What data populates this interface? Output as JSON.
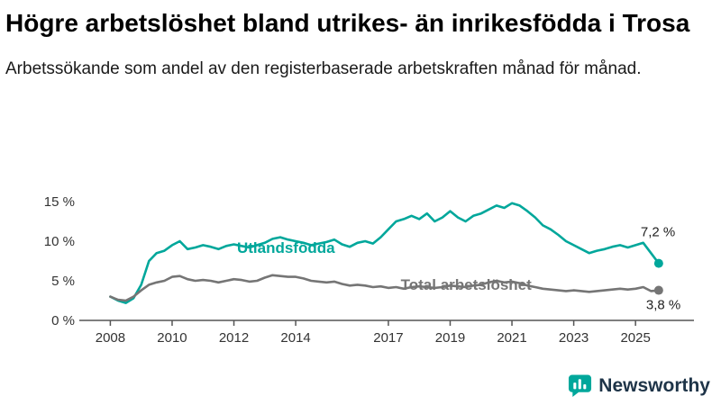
{
  "header": {
    "title": "Högre arbetslöshet bland utrikes- än inrikesfödda i Trosa",
    "subtitle": "Arbetssökande som andel av den registerbaserade arbetskraften månad för månad."
  },
  "branding": {
    "name": "Newsworthy",
    "icon_color": "#00a79b",
    "text_color": "#1e3448"
  },
  "chart_data": {
    "type": "line",
    "title": "",
    "xlabel": "",
    "ylabel": "",
    "grid": false,
    "legend": "inline-labels",
    "xlim": [
      2007.2,
      2026.6
    ],
    "ylim": [
      0,
      15
    ],
    "xticks": [
      2008,
      2010,
      2012,
      2014,
      2017,
      2019,
      2021,
      2023,
      2025
    ],
    "yticks": [
      0,
      5,
      10,
      15
    ],
    "ytick_labels": [
      "0 %",
      "5 %",
      "10 %",
      "15 %"
    ],
    "x": [
      2008,
      2008.25,
      2008.5,
      2008.75,
      2009,
      2009.25,
      2009.5,
      2009.75,
      2010,
      2010.25,
      2010.5,
      2010.75,
      2011,
      2011.25,
      2011.5,
      2011.75,
      2012,
      2012.25,
      2012.5,
      2012.75,
      2013,
      2013.25,
      2013.5,
      2013.75,
      2014,
      2014.25,
      2014.5,
      2014.75,
      2015,
      2015.25,
      2015.5,
      2015.75,
      2016,
      2016.25,
      2016.5,
      2016.75,
      2017,
      2017.25,
      2017.5,
      2017.75,
      2018,
      2018.25,
      2018.5,
      2018.75,
      2019,
      2019.25,
      2019.5,
      2019.75,
      2020,
      2020.25,
      2020.5,
      2020.75,
      2021,
      2021.25,
      2021.5,
      2021.75,
      2022,
      2022.25,
      2022.5,
      2022.75,
      2023,
      2023.25,
      2023.5,
      2023.75,
      2024,
      2024.25,
      2024.5,
      2024.75,
      2025,
      2025.25,
      2025.5,
      2025.75
    ],
    "series": [
      {
        "name": "Utlandsfödda",
        "color": "#00a79b",
        "end_label": "7,2 %",
        "end_label_dx": -20,
        "end_label_dy": -30,
        "label_pos": {
          "x": 2012.1,
          "y": 8.5
        },
        "values": [
          3.0,
          2.5,
          2.2,
          2.8,
          4.5,
          7.5,
          8.5,
          8.8,
          9.5,
          10.0,
          9.0,
          9.2,
          9.5,
          9.3,
          9.0,
          9.4,
          9.6,
          9.4,
          9.2,
          9.5,
          9.8,
          10.3,
          10.5,
          10.2,
          10.0,
          9.8,
          9.5,
          9.7,
          9.9,
          10.2,
          9.6,
          9.3,
          9.8,
          10.0,
          9.7,
          10.5,
          11.5,
          12.5,
          12.8,
          13.2,
          12.8,
          13.5,
          12.5,
          13.0,
          13.8,
          13.0,
          12.5,
          13.2,
          13.5,
          14.0,
          14.5,
          14.2,
          14.8,
          14.5,
          13.8,
          13.0,
          12.0,
          11.5,
          10.8,
          10.0,
          9.5,
          9.0,
          8.5,
          8.8,
          9.0,
          9.3,
          9.5,
          9.2,
          9.5,
          9.8,
          8.5,
          7.2
        ]
      },
      {
        "name": "Total arbetslöshet",
        "color": "#757575",
        "end_label": "3,8 %",
        "end_label_dx": -14,
        "end_label_dy": 21,
        "label_pos": {
          "x": 2017.4,
          "y": 3.85
        },
        "values": [
          3.0,
          2.6,
          2.5,
          3.0,
          3.8,
          4.5,
          4.8,
          5.0,
          5.5,
          5.6,
          5.2,
          5.0,
          5.1,
          5.0,
          4.8,
          5.0,
          5.2,
          5.1,
          4.9,
          5.0,
          5.4,
          5.7,
          5.6,
          5.5,
          5.5,
          5.3,
          5.0,
          4.9,
          4.8,
          4.9,
          4.6,
          4.4,
          4.5,
          4.4,
          4.2,
          4.3,
          4.1,
          4.2,
          4.0,
          4.2,
          4.3,
          4.2,
          4.1,
          4.2,
          4.4,
          4.3,
          4.2,
          4.4,
          4.5,
          4.8,
          5.0,
          4.8,
          4.9,
          4.7,
          4.4,
          4.2,
          4.0,
          3.9,
          3.8,
          3.7,
          3.8,
          3.7,
          3.6,
          3.7,
          3.8,
          3.9,
          4.0,
          3.9,
          4.0,
          4.2,
          3.7,
          3.8
        ]
      }
    ]
  }
}
